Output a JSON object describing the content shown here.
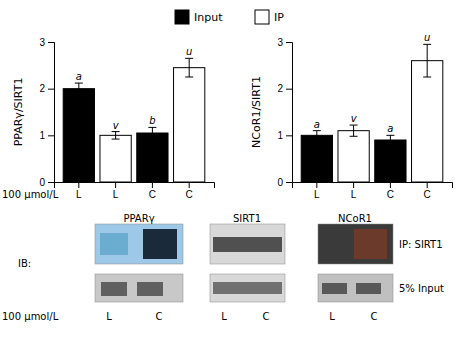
{
  "chart_data": [
    {
      "type": "bar",
      "ylabel": "PPARγ/SIRT1",
      "xlabel": "100 μmol/L",
      "categories": [
        "L",
        "L",
        "C",
        "C"
      ],
      "series": [
        {
          "name": "Input",
          "color": "black",
          "values": [
            2.0,
            null,
            1.05,
            null
          ],
          "errors": [
            0.12,
            null,
            0.12,
            null
          ],
          "annotations": [
            "a",
            null,
            "b",
            null
          ]
        },
        {
          "name": "IP",
          "color": "white",
          "values": [
            null,
            1.0,
            null,
            2.45
          ],
          "errors": [
            null,
            0.08,
            null,
            0.2
          ],
          "annotations": [
            null,
            "v",
            null,
            "u"
          ]
        }
      ],
      "ylim": [
        0,
        3
      ],
      "yticks": [
        0,
        1,
        2,
        3
      ]
    },
    {
      "type": "bar",
      "ylabel": "NCoR1/SIRT1",
      "categories": [
        "L",
        "L",
        "C",
        "C"
      ],
      "series": [
        {
          "color": "black",
          "values": [
            1.0,
            null,
            0.9,
            null
          ],
          "errors": [
            0.1,
            null,
            0.1,
            null
          ],
          "annotations": [
            "a",
            null,
            "a",
            null
          ]
        },
        {
          "color": "white",
          "values": [
            null,
            1.1,
            null,
            2.6
          ],
          "errors": [
            null,
            0.12,
            null,
            0.35
          ],
          "annotations": [
            null,
            "v",
            null,
            "u"
          ]
        }
      ],
      "ylim": [
        0,
        3
      ],
      "yticks": [
        0,
        1,
        2,
        3
      ]
    }
  ],
  "annotations": [
    "IB:",
    "PPARγ",
    "SIRT1",
    "NCoR1",
    "IP: SIRT1",
    "5% Input",
    "100 μmol/L",
    "L",
    "C",
    "L",
    "C",
    "L",
    "C"
  ]
}
